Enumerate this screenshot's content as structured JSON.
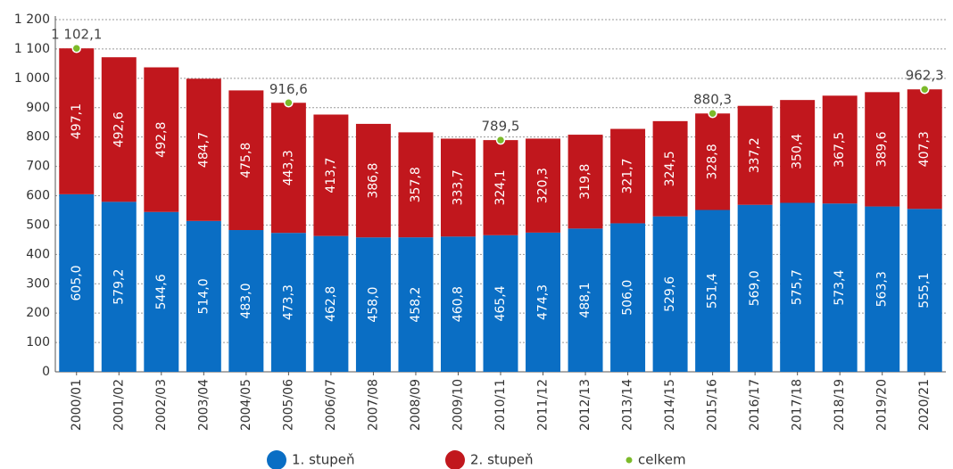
{
  "chart_data": {
    "type": "bar",
    "stacked": true,
    "categories": [
      "2000/01",
      "2001/02",
      "2002/03",
      "2003/04",
      "2004/05",
      "2005/06",
      "2006/07",
      "2007/08",
      "2008/09",
      "2009/10",
      "2010/11",
      "2011/12",
      "2012/13",
      "2013/14",
      "2014/15",
      "2015/16",
      "2016/17",
      "2017/18",
      "2018/19",
      "2019/20",
      "2020/21"
    ],
    "series": [
      {
        "name": "1. stupeň",
        "color": "#0a6ec4",
        "values": [
          605.0,
          579.2,
          544.6,
          514.0,
          483.0,
          473.3,
          462.8,
          458.0,
          458.2,
          460.8,
          465.4,
          474.3,
          488.1,
          506.0,
          529.6,
          551.4,
          569.0,
          575.7,
          573.4,
          563.3,
          555.1
        ],
        "value_labels": [
          "605,0",
          "579,2",
          "544,6",
          "514,0",
          "483,0",
          "473,3",
          "462,8",
          "458,0",
          "458,2",
          "460,8",
          "465,4",
          "474,3",
          "488,1",
          "506,0",
          "529,6",
          "551,4",
          "569,0",
          "575,7",
          "573,4",
          "563,3",
          "555,1"
        ]
      },
      {
        "name": "2. stupeň",
        "color": "#c1171d",
        "values": [
          497.1,
          492.6,
          492.8,
          484.7,
          475.8,
          443.3,
          413.7,
          386.8,
          357.8,
          333.7,
          324.1,
          320.3,
          319.8,
          321.7,
          324.5,
          328.8,
          337.2,
          350.4,
          367.5,
          389.6,
          407.3
        ],
        "value_labels": [
          "497,1",
          "492,6",
          "492,8",
          "484,7",
          "475,8",
          "443,3",
          "413,7",
          "386,8",
          "357,8",
          "333,7",
          "324,1",
          "320,3",
          "319,8",
          "321,7",
          "324,5",
          "328,8",
          "337,2",
          "350,4",
          "367,5",
          "389,6",
          "407,3"
        ]
      },
      {
        "name": "celkem",
        "color": "#7cba2a",
        "type": "scatter",
        "values": [
          1102.1,
          null,
          null,
          null,
          null,
          916.6,
          null,
          null,
          null,
          null,
          789.5,
          null,
          null,
          null,
          null,
          880.3,
          null,
          null,
          null,
          null,
          962.3
        ],
        "value_labels": [
          "1 102,1",
          null,
          null,
          null,
          null,
          "916,6",
          null,
          null,
          null,
          null,
          "789,5",
          null,
          null,
          null,
          null,
          "880,3",
          null,
          null,
          null,
          null,
          "962,3"
        ]
      }
    ],
    "ylim": [
      0,
      1200
    ],
    "yticks": [
      0,
      100,
      200,
      300,
      400,
      500,
      600,
      700,
      800,
      900,
      {
        "value": 1000,
        "label": "1 000"
      },
      {
        "value": 1100,
        "label": "1 100"
      },
      {
        "value": 1200,
        "label": "1 200"
      }
    ],
    "grid": true,
    "legend": "bottom"
  }
}
